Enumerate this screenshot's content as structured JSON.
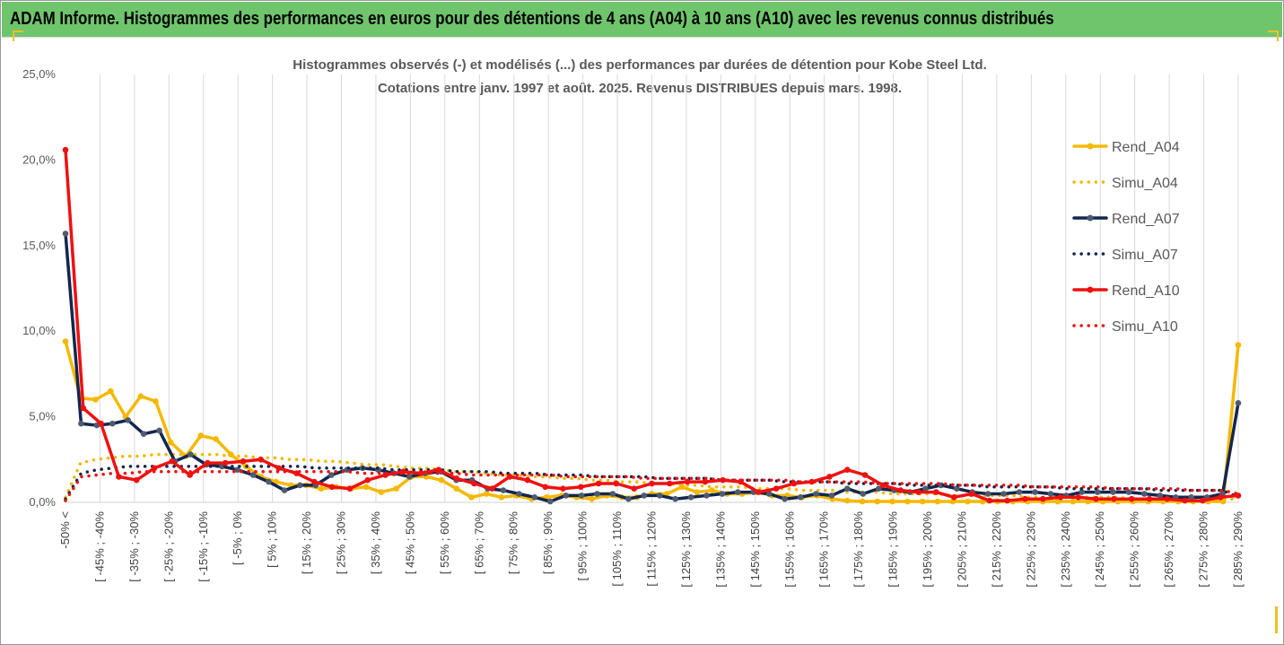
{
  "banner": {
    "title": "ADAM Informe. Histogrammes des performances en euros pour des détentions de 4 ans (A04) à 10 ans (A10) avec les revenus connus distribués"
  },
  "chart_data": {
    "type": "line",
    "title_line1": "Histogrammes observés (-) et modélisés (...) des performances par durées de détention pour Kobe Steel Ltd.",
    "title_line2": "Cotations entre janv. 1997 et août. 2025. Revenus DISTRIBUES depuis mars. 1998.",
    "xlabel": "",
    "ylabel": "",
    "ylim": [
      0,
      25
    ],
    "yticks": [
      "0,0%",
      "5,0%",
      "10,0%",
      "15,0%",
      "20,0%",
      "25,0%"
    ],
    "grid": "vertical",
    "legend_position": "right",
    "xtick_labels": [
      "-50% <",
      "[ -45% ; -40%",
      "[ -35% ; -30%",
      "[ -25% ; -20%",
      "[ -15% ; -10%",
      "[ -5% ; 0%",
      "[ 5% ; 10%",
      "[ 15% ; 20%",
      "[ 25% ; 30%",
      "[ 35% ; 40%",
      "[ 45% ; 50%",
      "[ 55% ; 60%",
      "[ 65% ; 70%",
      "[ 75% ; 80%",
      "[ 85% ; 90%",
      "[ 95% ; 100%",
      "[ 105% ; 110%",
      "[ 115% ; 120%",
      "[ 125% ; 130%",
      "[ 135% ; 140%",
      "[ 145% ; 150%",
      "[ 155% ; 160%",
      "[ 165% ; 170%",
      "[ 175% ; 180%",
      "[ 185% ; 190%",
      "[ 195% ; 200%",
      "[ 205% ; 210%",
      "[ 215% ; 220%",
      "[ 225% ; 230%",
      "[ 235% ; 240%",
      "[ 245% ; 250%",
      "[ 255% ; 260%",
      "[ 265% ; 270%",
      "[ 275% ; 280%",
      "[ 285% ; 290%"
    ],
    "series": [
      {
        "name": "Rend_A04",
        "color": "#f5b800",
        "style": "solid",
        "markers": true,
        "values": [
          9.4,
          6.1,
          6.0,
          6.5,
          5.0,
          6.2,
          5.9,
          3.5,
          2.7,
          3.9,
          3.7,
          2.8,
          2.1,
          1.5,
          1.2,
          1.0,
          1.0,
          0.8,
          0.9,
          0.8,
          0.9,
          0.6,
          0.8,
          1.5,
          1.5,
          1.3,
          0.8,
          0.3,
          0.5,
          0.3,
          0.4,
          0.2,
          0.3,
          0.4,
          0.3,
          0.2,
          0.4,
          0.3,
          0.3,
          0.5,
          0.5,
          0.9,
          0.6,
          0.7,
          0.5,
          0.5,
          0.6,
          0.4,
          0.4,
          0.3,
          0.4,
          0.2,
          0.1,
          0.05,
          0.05,
          0.05,
          0.05,
          0.05,
          0.05,
          0.05,
          0.05,
          0.05,
          0.05,
          0.05,
          0.05,
          0.05,
          0.05,
          0.05,
          0.05,
          0.05,
          0.05,
          0.05,
          0.05,
          0.05,
          0.05,
          0.05,
          0.05,
          0.05,
          9.2
        ]
      },
      {
        "name": "Simu_A04",
        "color": "#f5b800",
        "style": "dotted",
        "markers": false,
        "values": [
          0.3,
          2.3,
          2.5,
          2.6,
          2.7,
          2.7,
          2.8,
          2.8,
          2.8,
          2.8,
          2.8,
          2.7,
          2.7,
          2.6,
          2.6,
          2.5,
          2.5,
          2.4,
          2.4,
          2.3,
          2.2,
          2.2,
          2.1,
          2.0,
          2.0,
          1.9,
          1.8,
          1.8,
          1.7,
          1.6,
          1.6,
          1.5,
          1.5,
          1.4,
          1.4,
          1.3,
          1.3,
          1.2,
          1.2,
          1.1,
          1.1,
          1.0,
          1.0,
          0.9,
          0.9,
          0.9,
          0.8,
          0.8,
          0.8,
          0.7,
          0.7,
          0.7,
          0.6,
          0.6,
          0.6,
          0.5,
          0.5,
          0.5,
          0.5,
          0.4,
          0.4,
          0.4,
          0.4,
          0.4,
          0.3,
          0.3,
          0.3,
          0.3,
          0.3,
          0.3,
          0.3,
          0.2,
          0.2,
          0.2,
          0.2,
          0.2,
          0.2,
          0.2,
          0.2
        ]
      },
      {
        "name": "Rend_A07",
        "color": "#13264f",
        "style": "solid",
        "markers": true,
        "values": [
          15.7,
          4.6,
          4.5,
          4.6,
          4.8,
          4.0,
          4.2,
          2.4,
          2.8,
          2.2,
          2.1,
          1.9,
          1.6,
          1.2,
          0.7,
          1.0,
          1.0,
          1.6,
          1.9,
          2.0,
          1.9,
          1.7,
          1.5,
          1.7,
          1.8,
          1.3,
          1.3,
          0.8,
          0.7,
          0.5,
          0.3,
          0.05,
          0.4,
          0.4,
          0.5,
          0.5,
          0.2,
          0.4,
          0.4,
          0.2,
          0.3,
          0.4,
          0.5,
          0.6,
          0.6,
          0.5,
          0.2,
          0.3,
          0.5,
          0.4,
          0.8,
          0.5,
          0.8,
          0.7,
          0.6,
          0.8,
          1.0,
          0.8,
          0.6,
          0.5,
          0.5,
          0.6,
          0.6,
          0.5,
          0.4,
          0.6,
          0.6,
          0.6,
          0.6,
          0.5,
          0.4,
          0.3,
          0.3,
          0.3,
          0.5,
          5.8
        ]
      },
      {
        "name": "Simu_A07",
        "color": "#13264f",
        "style": "dotted",
        "markers": false,
        "values": [
          0.2,
          1.7,
          1.9,
          2.0,
          2.1,
          2.1,
          2.1,
          2.1,
          2.1,
          2.1,
          2.1,
          2.1,
          2.1,
          2.1,
          2.1,
          2.1,
          2.0,
          2.0,
          2.0,
          2.0,
          2.0,
          1.9,
          1.9,
          1.9,
          1.9,
          1.8,
          1.8,
          1.8,
          1.7,
          1.7,
          1.7,
          1.6,
          1.6,
          1.6,
          1.5,
          1.5,
          1.5,
          1.5,
          1.4,
          1.4,
          1.4,
          1.4,
          1.3,
          1.3,
          1.3,
          1.3,
          1.2,
          1.2,
          1.2,
          1.2,
          1.1,
          1.1,
          1.1,
          1.1,
          1.0,
          1.0,
          1.0,
          1.0,
          1.0,
          0.9,
          0.9,
          0.9,
          0.9,
          0.9,
          0.8,
          0.8,
          0.8,
          0.8,
          0.8,
          0.8,
          0.7,
          0.7,
          0.7,
          0.7,
          0.7,
          0.3
        ]
      },
      {
        "name": "Rend_A10",
        "color": "#ee1111",
        "style": "solid",
        "markers": true,
        "values": [
          20.6,
          5.5,
          4.6,
          1.5,
          1.3,
          2.0,
          2.4,
          1.6,
          2.3,
          2.3,
          2.4,
          2.5,
          2.0,
          1.7,
          1.2,
          0.9,
          0.8,
          1.3,
          1.6,
          1.8,
          1.7,
          1.9,
          1.4,
          1.1,
          0.8,
          1.5,
          1.3,
          0.9,
          0.8,
          0.9,
          1.1,
          1.1,
          0.8,
          1.1,
          1.1,
          1.2,
          1.2,
          1.3,
          1.2,
          0.6,
          0.8,
          1.1,
          1.2,
          1.5,
          1.9,
          1.6,
          1.0,
          0.7,
          0.6,
          0.6,
          0.3,
          0.5,
          0.1,
          0.1,
          0.2,
          0.2,
          0.3,
          0.3,
          0.2,
          0.2,
          0.2,
          0.2,
          0.2,
          0.1,
          0.1,
          0.3,
          0.4
        ]
      },
      {
        "name": "Simu_A10",
        "color": "#ee1111",
        "style": "dotted",
        "markers": false,
        "values": [
          0.1,
          1.5,
          1.6,
          1.7,
          1.7,
          1.8,
          1.8,
          1.8,
          1.8,
          1.8,
          1.8,
          1.8,
          1.8,
          1.8,
          1.8,
          1.8,
          1.8,
          1.8,
          1.8,
          1.7,
          1.7,
          1.7,
          1.7,
          1.7,
          1.7,
          1.7,
          1.6,
          1.6,
          1.6,
          1.6,
          1.6,
          1.6,
          1.5,
          1.5,
          1.5,
          1.5,
          1.5,
          1.4,
          1.4,
          1.4,
          1.4,
          1.4,
          1.3,
          1.3,
          1.3,
          1.3,
          1.3,
          1.2,
          1.2,
          1.2,
          1.2,
          1.2,
          1.1,
          1.1,
          1.1,
          1.1,
          1.1,
          1.0,
          1.0,
          1.0,
          1.0,
          1.0,
          0.9,
          0.9,
          0.9,
          0.9,
          0.9,
          0.8,
          0.8,
          0.8,
          0.8,
          0.8,
          0.7,
          0.7,
          0.7,
          0.5
        ]
      }
    ]
  }
}
